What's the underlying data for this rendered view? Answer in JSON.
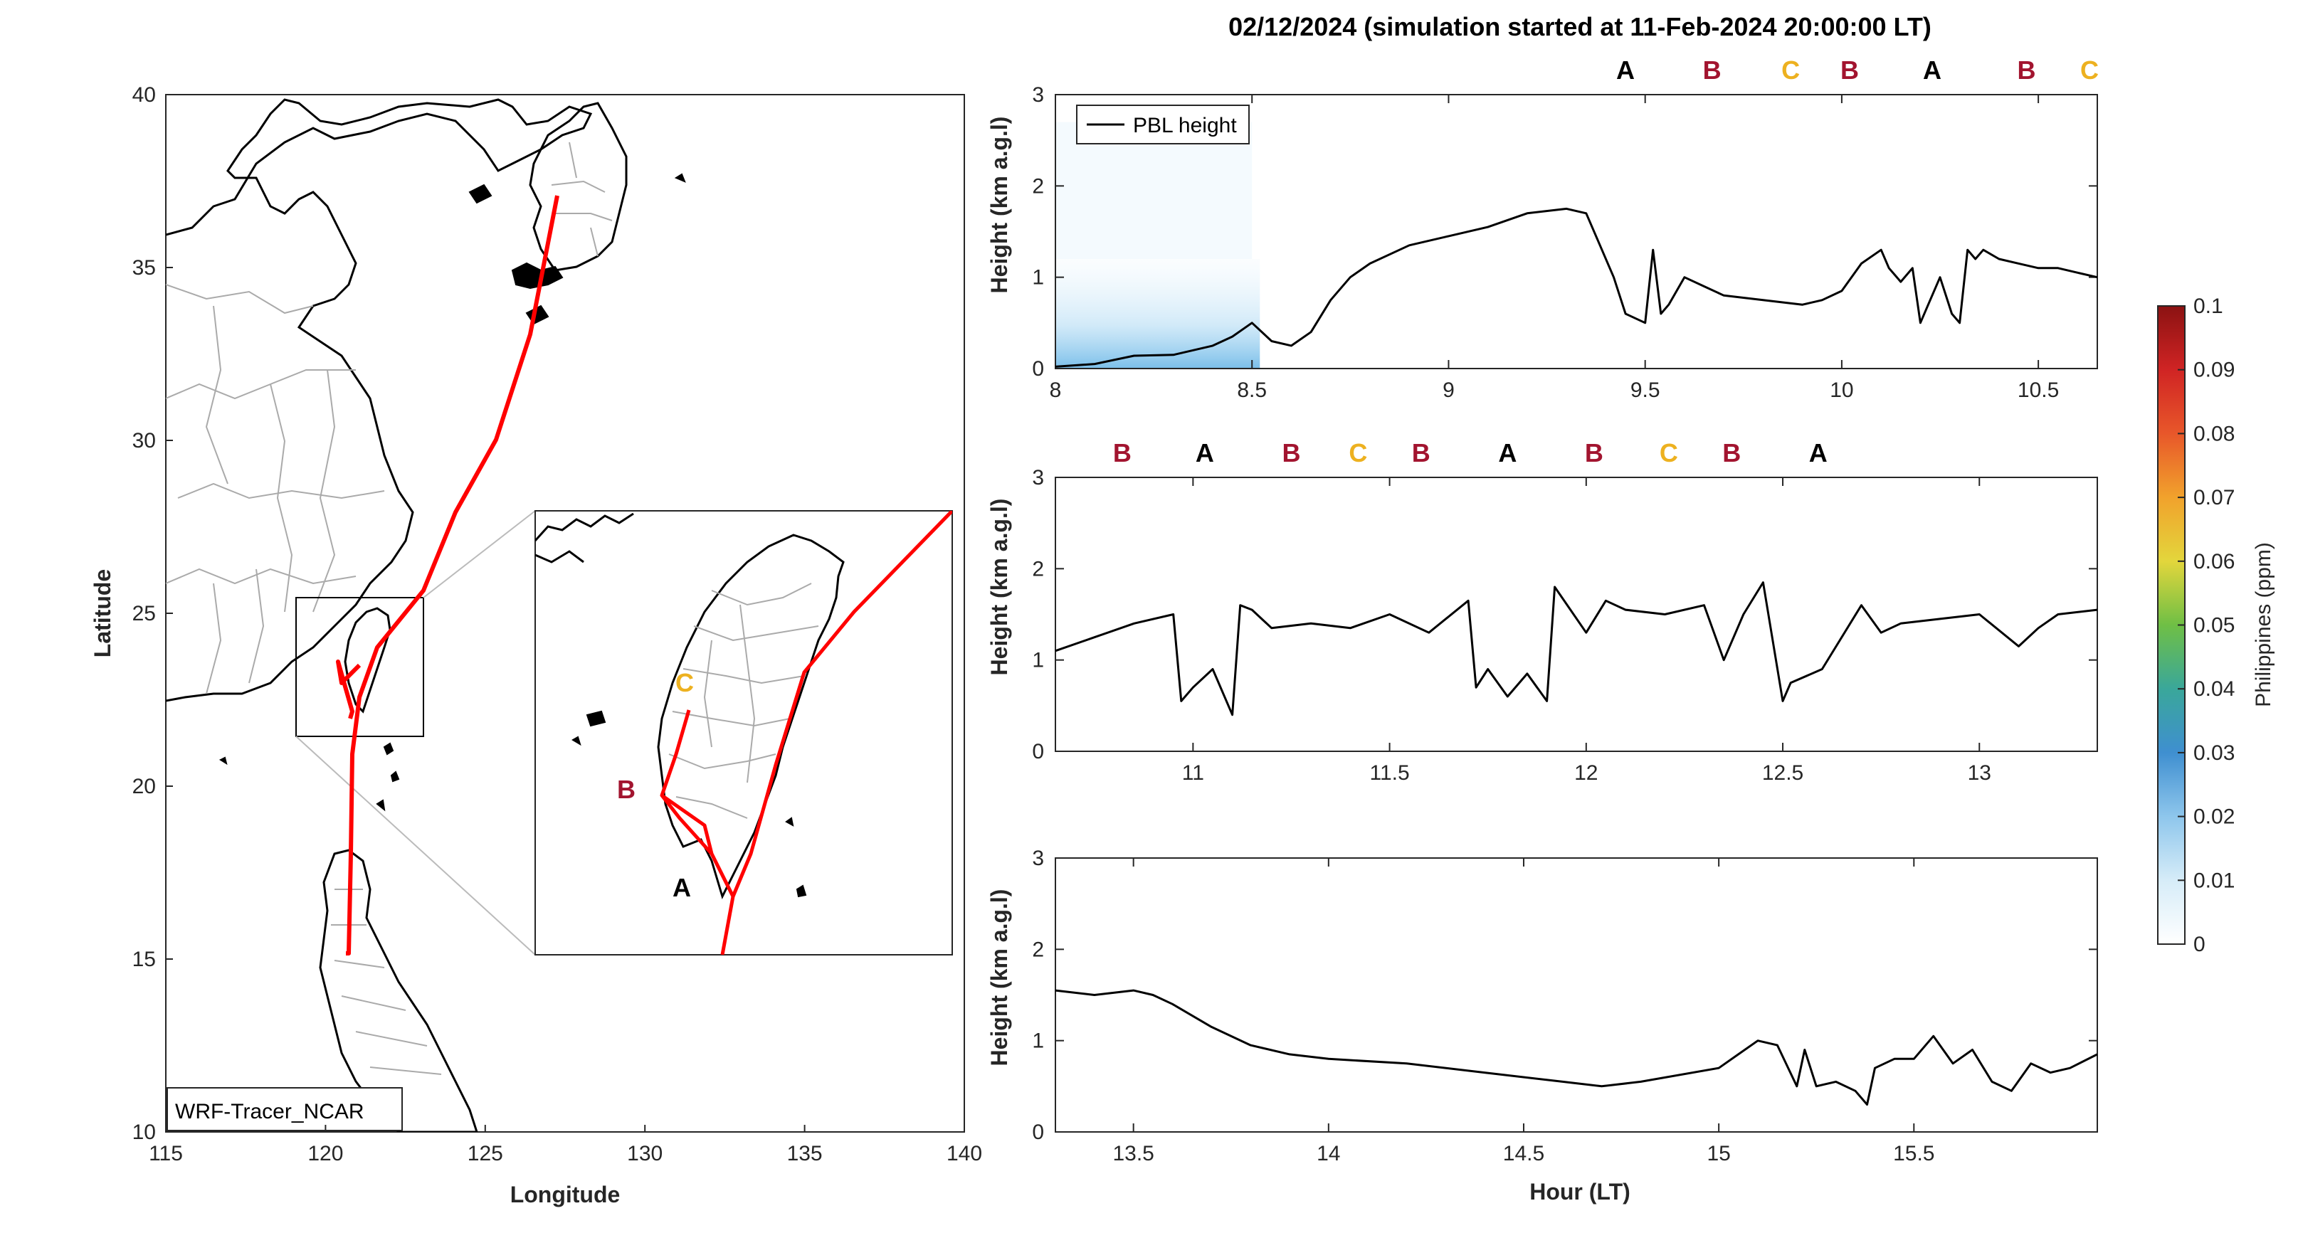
{
  "title": "02/12/2024 (simulation started at 11-Feb-2024 20:00:00 LT)",
  "colors": {
    "A": "#000000",
    "B": "#a2142f",
    "C": "#edb120",
    "track": "#ff0000",
    "pbl": "#000000"
  },
  "map": {
    "xlabel": "Longitude",
    "ylabel": "Latitude",
    "xlim": [
      115,
      140
    ],
    "ylim": [
      10,
      40
    ],
    "xticks": [
      "115",
      "120",
      "125",
      "130",
      "135",
      "140"
    ],
    "yticks": [
      "10",
      "15",
      "20",
      "25",
      "30",
      "35",
      "40"
    ],
    "source_label": "WRF-Tracer_NCAR",
    "inset_labels": {
      "A": "A",
      "B": "B",
      "C": "C"
    }
  },
  "colorbar": {
    "label": "Philippines (ppm)",
    "ticks": [
      "0",
      "0.01",
      "0.02",
      "0.03",
      "0.04",
      "0.05",
      "0.06",
      "0.07",
      "0.08",
      "0.09",
      "0.1"
    ]
  },
  "panels": {
    "ylabel": "Height (km a.g.l)",
    "xlabel": "Hour (LT)",
    "legend": "PBL height"
  },
  "chart_data": [
    {
      "type": "line",
      "title": "02/12/2024 (simulation started at 11-Feb-2024 20:00:00 LT)",
      "ylabel": "Height (km a.g.l)",
      "xlim": [
        8,
        10.65
      ],
      "ylim": [
        0,
        3
      ],
      "xticks": [
        "8",
        "8.5",
        "9",
        "9.5",
        "10",
        "10.5"
      ],
      "yticks": [
        "0",
        "1",
        "2",
        "3"
      ],
      "legend": "PBL height",
      "markers": [
        {
          "label": "A",
          "x": 9.45
        },
        {
          "label": "B",
          "x": 9.67
        },
        {
          "label": "C",
          "x": 9.87
        },
        {
          "label": "B",
          "x": 10.02
        },
        {
          "label": "A",
          "x": 10.23
        },
        {
          "label": "B",
          "x": 10.47
        },
        {
          "label": "C",
          "x": 10.63
        }
      ],
      "series": [
        {
          "name": "PBL height",
          "x": [
            8.0,
            8.1,
            8.2,
            8.3,
            8.4,
            8.45,
            8.5,
            8.55,
            8.6,
            8.65,
            8.7,
            8.75,
            8.8,
            8.9,
            9.0,
            9.1,
            9.2,
            9.3,
            9.35,
            9.38,
            9.42,
            9.45,
            9.5,
            9.52,
            9.54,
            9.56,
            9.6,
            9.65,
            9.7,
            9.8,
            9.9,
            9.95,
            10.0,
            10.05,
            10.1,
            10.12,
            10.15,
            10.18,
            10.2,
            10.22,
            10.25,
            10.28,
            10.3,
            10.32,
            10.34,
            10.36,
            10.4,
            10.45,
            10.5,
            10.55,
            10.6,
            10.65
          ],
          "y": [
            0.02,
            0.05,
            0.14,
            0.15,
            0.25,
            0.35,
            0.5,
            0.3,
            0.25,
            0.4,
            0.75,
            1.0,
            1.15,
            1.35,
            1.45,
            1.55,
            1.7,
            1.75,
            1.7,
            1.4,
            1.0,
            0.6,
            0.5,
            1.3,
            0.6,
            0.7,
            1.0,
            0.9,
            0.8,
            0.75,
            0.7,
            0.75,
            0.85,
            1.15,
            1.3,
            1.1,
            0.95,
            1.1,
            0.5,
            0.7,
            1.0,
            0.6,
            0.5,
            1.3,
            1.2,
            1.3,
            1.2,
            1.15,
            1.1,
            1.1,
            1.05,
            1.0
          ]
        }
      ]
    },
    {
      "type": "line",
      "ylabel": "Height (km a.g.l)",
      "xlim": [
        10.65,
        13.3
      ],
      "ylim": [
        0,
        3
      ],
      "xticks": [
        "11",
        "11.5",
        "12",
        "12.5",
        "13"
      ],
      "yticks": [
        "0",
        "1",
        "2",
        "3"
      ],
      "markers": [
        {
          "label": "B",
          "x": 10.82
        },
        {
          "label": "A",
          "x": 11.03
        },
        {
          "label": "B",
          "x": 11.25
        },
        {
          "label": "C",
          "x": 11.42
        },
        {
          "label": "B",
          "x": 11.58
        },
        {
          "label": "A",
          "x": 11.8
        },
        {
          "label": "B",
          "x": 12.02
        },
        {
          "label": "C",
          "x": 12.21
        },
        {
          "label": "B",
          "x": 12.37
        },
        {
          "label": "A",
          "x": 12.59
        }
      ],
      "series": [
        {
          "name": "PBL height",
          "x": [
            10.65,
            10.75,
            10.85,
            10.95,
            10.97,
            11.0,
            11.05,
            11.1,
            11.12,
            11.15,
            11.2,
            11.3,
            11.4,
            11.5,
            11.6,
            11.7,
            11.72,
            11.75,
            11.8,
            11.85,
            11.9,
            11.92,
            12.0,
            12.05,
            12.1,
            12.2,
            12.3,
            12.35,
            12.4,
            12.45,
            12.5,
            12.52,
            12.6,
            12.7,
            12.75,
            12.8,
            12.9,
            13.0,
            13.1,
            13.15,
            13.2,
            13.3
          ],
          "y": [
            1.1,
            1.25,
            1.4,
            1.5,
            0.55,
            0.7,
            0.9,
            0.4,
            1.6,
            1.55,
            1.35,
            1.4,
            1.35,
            1.5,
            1.3,
            1.65,
            0.7,
            0.9,
            0.6,
            0.85,
            0.55,
            1.8,
            1.3,
            1.65,
            1.55,
            1.5,
            1.6,
            1.0,
            1.5,
            1.85,
            0.55,
            0.75,
            0.9,
            1.6,
            1.3,
            1.4,
            1.45,
            1.5,
            1.15,
            1.35,
            1.5,
            1.55
          ]
        }
      ]
    },
    {
      "type": "line",
      "xlabel": "Hour (LT)",
      "ylabel": "Height (km a.g.l)",
      "xlim": [
        13.3,
        15.97
      ],
      "ylim": [
        0,
        3
      ],
      "xticks": [
        "13.5",
        "14",
        "14.5",
        "15",
        "15.5"
      ],
      "yticks": [
        "0",
        "1",
        "2",
        "3"
      ],
      "series": [
        {
          "name": "PBL height",
          "x": [
            13.3,
            13.4,
            13.5,
            13.55,
            13.6,
            13.7,
            13.8,
            13.9,
            14.0,
            14.2,
            14.4,
            14.6,
            14.7,
            14.8,
            15.0,
            15.05,
            15.1,
            15.15,
            15.2,
            15.22,
            15.25,
            15.3,
            15.35,
            15.38,
            15.4,
            15.45,
            15.5,
            15.55,
            15.6,
            15.65,
            15.7,
            15.75,
            15.8,
            15.85,
            15.9,
            15.97
          ],
          "y": [
            1.55,
            1.5,
            1.55,
            1.5,
            1.4,
            1.15,
            0.95,
            0.85,
            0.8,
            0.75,
            0.65,
            0.55,
            0.5,
            0.55,
            0.7,
            0.85,
            1.0,
            0.95,
            0.5,
            0.9,
            0.5,
            0.55,
            0.45,
            0.3,
            0.7,
            0.8,
            0.8,
            1.05,
            0.75,
            0.9,
            0.55,
            0.45,
            0.75,
            0.65,
            0.7,
            0.85
          ]
        }
      ]
    }
  ]
}
